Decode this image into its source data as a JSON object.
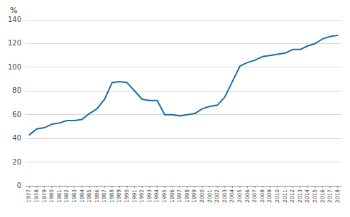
{
  "chart_data": {
    "type": "line",
    "ylabel": "%",
    "x": [
      1977,
      1978,
      1979,
      1980,
      1981,
      1982,
      1983,
      1984,
      1985,
      1986,
      1987,
      1988,
      1989,
      1990,
      1991,
      1992,
      1993,
      1994,
      1995,
      1996,
      1997,
      1998,
      1999,
      2000,
      2001,
      2002,
      2003,
      2004,
      2005,
      2006,
      2007,
      2008,
      2009,
      2010,
      2011,
      2012,
      2013,
      2014,
      2015,
      2016,
      2017,
      2018
    ],
    "values": [
      43,
      48,
      49,
      52,
      53,
      55,
      55,
      56,
      61,
      65,
      73,
      87,
      88,
      87,
      80,
      73,
      72,
      72,
      60,
      60,
      59,
      60,
      61,
      65,
      67,
      68,
      75,
      88,
      101,
      104,
      106,
      109,
      110,
      111,
      112,
      115,
      115,
      118,
      120,
      124,
      126,
      127
    ],
    "color": "#1a6fa3",
    "xlim": [
      1976.5,
      2018.5
    ],
    "xticks": [
      1977,
      1978,
      1979,
      1980,
      1981,
      1982,
      1983,
      1984,
      1985,
      1986,
      1987,
      1988,
      1989,
      1990,
      1991,
      1992,
      1993,
      1994,
      1995,
      1996,
      1997,
      1998,
      1999,
      2000,
      2001,
      2002,
      2003,
      2004,
      2005,
      2006,
      2007,
      2008,
      2009,
      2010,
      2011,
      2012,
      2013,
      2014,
      2015,
      2016,
      2017,
      2018
    ],
    "ylim": [
      0,
      140
    ],
    "yticks": [
      0,
      20,
      40,
      60,
      80,
      100,
      120,
      140
    ],
    "grid": true
  }
}
